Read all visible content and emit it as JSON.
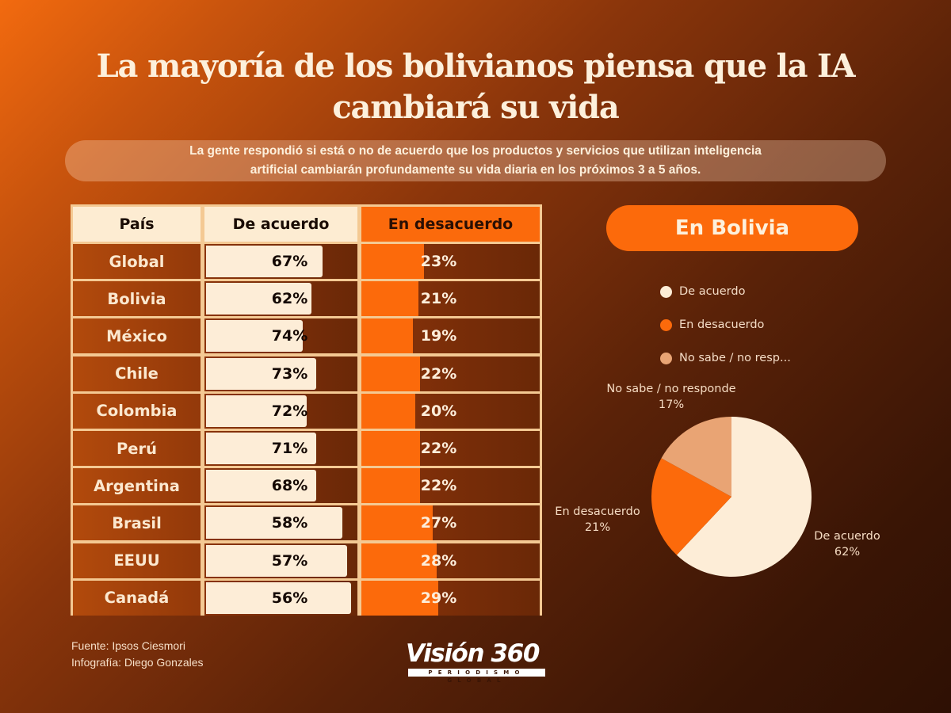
{
  "title": "La mayoría de los bolivianos piensa que la IA cambiará su vida",
  "title_line1": "La mayoría de los bolivianos piensa que la IA",
  "title_line2": "cambiará su vida",
  "subtitle_line1": "La gente respondió si está o no de acuerdo que los productos y servicios que utilizan inteligencia",
  "subtitle_line2": "artificial cambiarán profundamente su vida diaria en los próximos 3 a 5 años.",
  "colors": {
    "agree": "#fdedd7",
    "disagree": "#fc6a0b",
    "no_answer": "#e9a474",
    "accent": "#fc6a0b"
  },
  "chart_data": [
    {
      "type": "table",
      "title": "",
      "columns": [
        "País",
        "De acuerdo",
        "En desacuerdo"
      ],
      "categories": [
        "Global",
        "Bolivia",
        "México",
        "Chile",
        "Colombia",
        "Perú",
        "Argentina",
        "Brasil",
        "EEUU",
        "Canadá"
      ],
      "series": [
        {
          "name": "De acuerdo",
          "values": [
            67,
            62,
            74,
            73,
            72,
            71,
            68,
            58,
            57,
            56
          ],
          "labels": [
            "67%",
            "62%",
            "74%",
            "73%",
            "72%",
            "71%",
            "68%",
            "58%",
            "57%",
            "56%"
          ],
          "bar_fill_fraction": [
            0.76,
            0.69,
            0.63,
            0.72,
            0.66,
            0.72,
            0.72,
            0.89,
            0.92,
            0.95
          ]
        },
        {
          "name": "En desacuerdo",
          "values": [
            23,
            21,
            19,
            22,
            20,
            22,
            22,
            27,
            28,
            29
          ],
          "labels": [
            "23%",
            "21%",
            "19%",
            "22%",
            "20%",
            "22%",
            "22%",
            "27%",
            "28%",
            "29%"
          ],
          "bar_fill_fraction": [
            0.35,
            0.32,
            0.29,
            0.33,
            0.3,
            0.33,
            0.33,
            0.4,
            0.42,
            0.43
          ]
        }
      ]
    },
    {
      "type": "pie",
      "title": "En Bolivia",
      "categories": [
        "De acuerdo",
        "En desacuerdo",
        "No sabe / no responde"
      ],
      "values": [
        62,
        21,
        17
      ],
      "value_labels": [
        "62%",
        "21%",
        "17%"
      ],
      "legend": [
        "De acuerdo",
        "En desacuerdo",
        "No sabe / no resp..."
      ],
      "legend_position": "top",
      "start": "12 o'clock, clockwise"
    }
  ],
  "pie_title": "En Bolivia",
  "footer": {
    "source": "Fuente: Ipsos Ciesmori",
    "credit": "Infografía: Diego Gonzales"
  },
  "logo": {
    "name": "Visión 360",
    "tagline": "PERIODISMO GLOBAL"
  }
}
